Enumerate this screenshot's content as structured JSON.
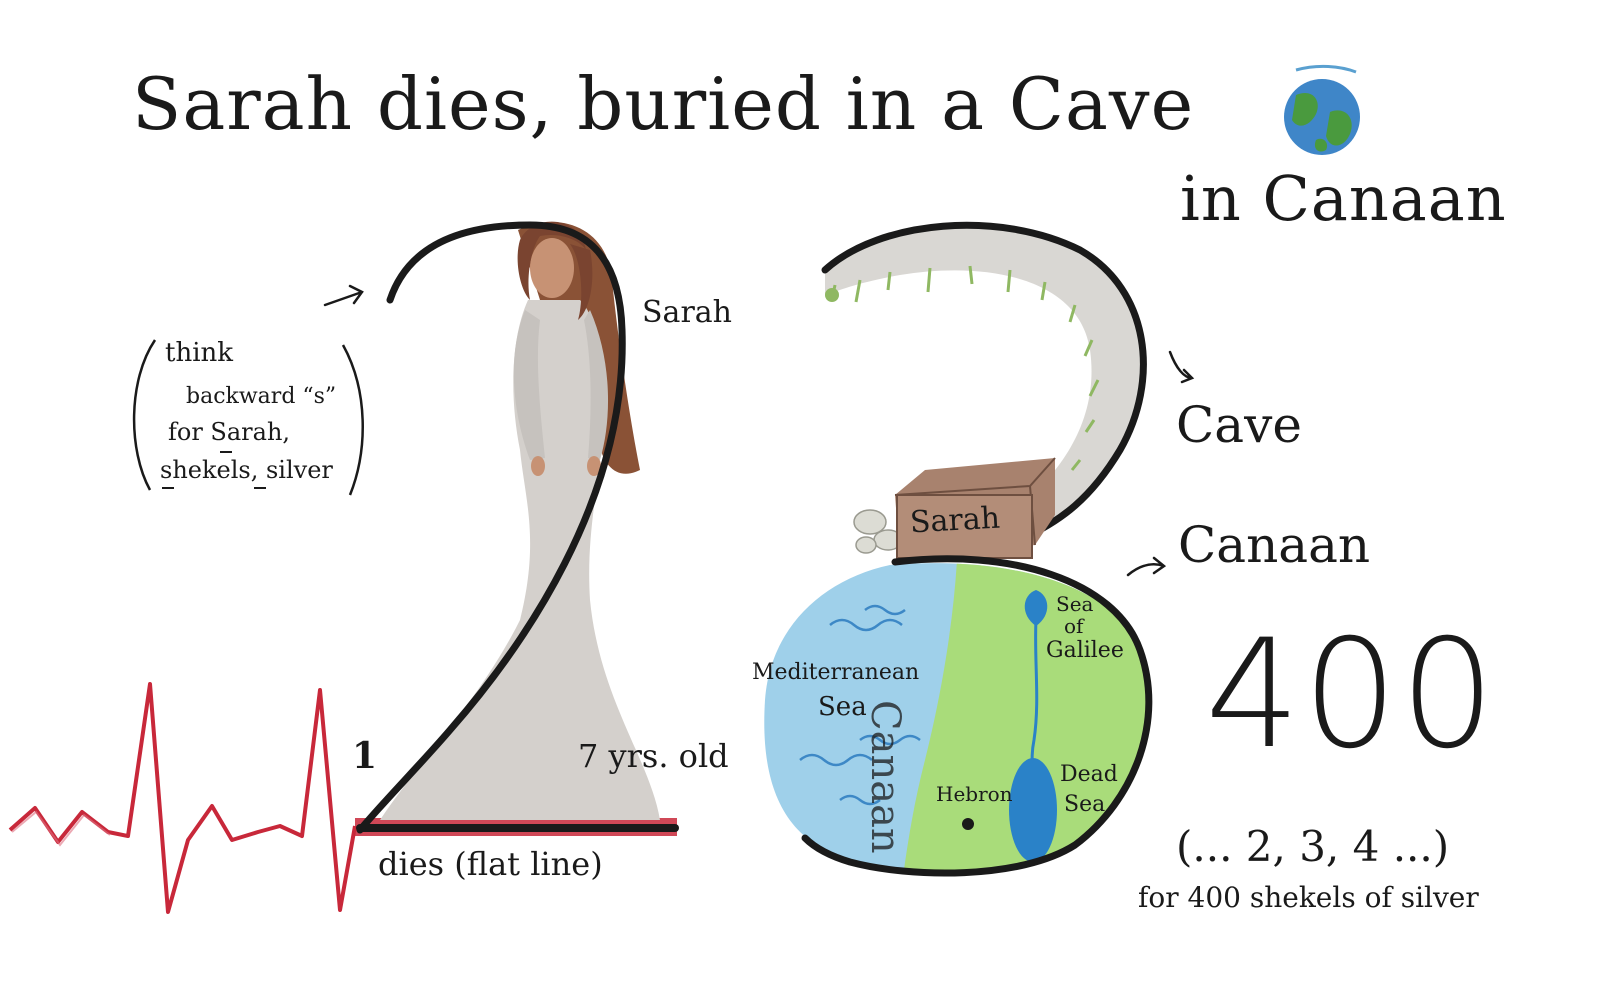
{
  "title": {
    "line1": "Sarah dies, buried in a Cave",
    "line2": "in Canaan"
  },
  "figure_label": "Sarah",
  "mnemonic": {
    "line1": "think",
    "line2": "backward “s”",
    "line3": "for Sarah,",
    "line4": "shekels, silver"
  },
  "age": {
    "digit1": "1",
    "digit2_label": "7 yrs. old"
  },
  "flatline_caption": "dies (flat line)",
  "right_labels": {
    "cave": "Cave",
    "canaan": "Canaan"
  },
  "coffin_label": "Sarah",
  "map": {
    "sea_line1": "Mediterranean",
    "sea_line2": "Sea",
    "region": "Canaan",
    "galilee_line1": "Sea",
    "galilee_line2": "of",
    "galilee_line3": "Galilee",
    "dead_line1": "Dead",
    "dead_line2": "Sea",
    "city": "Hebron"
  },
  "price": {
    "number": "400",
    "counting": "(... 2, 3, 4 ...)",
    "caption": "for 400 shekels of silver"
  },
  "colors": {
    "ink": "#1a1a1a",
    "heartbeat": "#c8283a",
    "hair": "#8a5236",
    "dress": "#d4d0cc",
    "sea": "#9fd0ea",
    "land": "#a9dc7a",
    "coffin": "#a8826e",
    "cave_moss": "#8fb862"
  }
}
